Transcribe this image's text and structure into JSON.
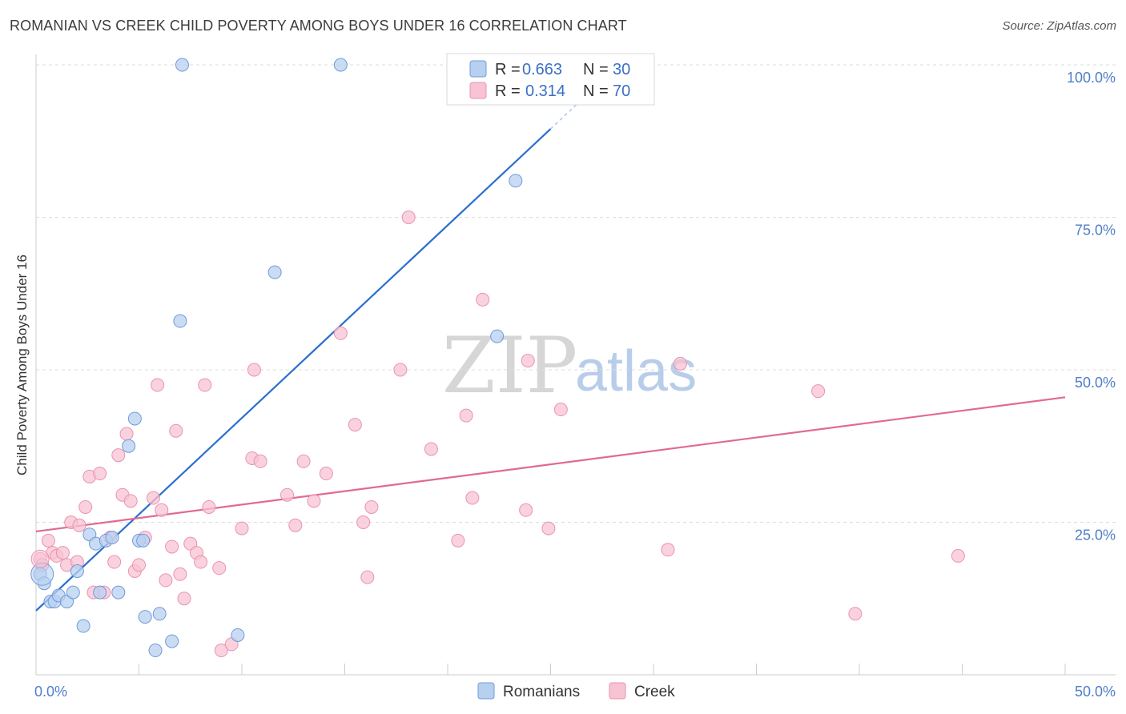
{
  "header": {
    "title": "ROMANIAN VS CREEK CHILD POVERTY AMONG BOYS UNDER 16 CORRELATION CHART",
    "source": "Source: ZipAtlas.com"
  },
  "watermark": {
    "zip": "ZIP",
    "atlas": "atlas"
  },
  "legend": {
    "r_label": "R =",
    "n_label": "N =",
    "romanians": {
      "r": "0.663",
      "n": "30"
    },
    "creek": {
      "r": "0.314",
      "n": "70"
    }
  },
  "bottom_legend": {
    "romanians": "Romanians",
    "creek": "Creek"
  },
  "colors": {
    "romanians_fill": "#b8d0f0",
    "romanians_stroke": "#6f9bd8",
    "romanians_line": "#2a6fcf",
    "creek_fill": "#f8c3d3",
    "creek_stroke": "#e993b0",
    "creek_line": "#e06a94",
    "grid": "#dddddd",
    "tick_text": "#4f7fc9"
  },
  "chart_data": {
    "type": "scatter",
    "title": "ROMANIAN VS CREEK CHILD POVERTY AMONG BOYS UNDER 16 CORRELATION CHART",
    "xlabel": "",
    "ylabel": "Child Poverty Among Boys Under 16",
    "xlim": [
      0,
      50
    ],
    "ylim": [
      0,
      100
    ],
    "x_tick_labels": [
      "0.0%",
      "50.0%"
    ],
    "y_ticks": [
      25,
      50,
      75,
      100
    ],
    "y_tick_labels": [
      "25.0%",
      "50.0%",
      "75.0%",
      "100.0%"
    ],
    "grid": true,
    "series": [
      {
        "name": "Romanians",
        "r": 0.663,
        "n": 30,
        "points": [
          [
            0.2,
            16.5
          ],
          [
            0.4,
            15.0
          ],
          [
            0.7,
            12.0
          ],
          [
            0.9,
            12.0
          ],
          [
            1.1,
            13.0
          ],
          [
            1.5,
            12.0
          ],
          [
            1.8,
            13.5
          ],
          [
            2.0,
            17.0
          ],
          [
            2.3,
            8.0
          ],
          [
            2.6,
            23.0
          ],
          [
            2.9,
            21.5
          ],
          [
            3.1,
            13.5
          ],
          [
            3.4,
            22.0
          ],
          [
            3.7,
            22.5
          ],
          [
            4.0,
            13.5
          ],
          [
            4.5,
            37.5
          ],
          [
            5.0,
            22.0
          ],
          [
            4.8,
            42.0
          ],
          [
            5.2,
            22.0
          ],
          [
            5.3,
            9.5
          ],
          [
            5.8,
            4.0
          ],
          [
            6.0,
            10.0
          ],
          [
            6.6,
            5.5
          ],
          [
            7.0,
            58.0
          ],
          [
            7.1,
            100.0
          ],
          [
            9.8,
            6.5
          ],
          [
            11.6,
            66.0
          ],
          [
            14.8,
            100.0
          ],
          [
            22.4,
            55.5
          ],
          [
            23.3,
            81.0
          ]
        ],
        "trendline": {
          "x": [
            0,
            25
          ],
          "y": [
            10.5,
            89.5
          ]
        }
      },
      {
        "name": "Creek",
        "r": 0.314,
        "n": 70,
        "points": [
          [
            0.2,
            19.0
          ],
          [
            0.3,
            18.0
          ],
          [
            0.6,
            22.0
          ],
          [
            0.8,
            20.0
          ],
          [
            1.0,
            19.5
          ],
          [
            1.3,
            20.0
          ],
          [
            1.5,
            18.0
          ],
          [
            1.7,
            25.0
          ],
          [
            2.0,
            18.5
          ],
          [
            2.1,
            24.5
          ],
          [
            2.4,
            27.5
          ],
          [
            2.6,
            32.5
          ],
          [
            2.8,
            13.5
          ],
          [
            3.1,
            33.0
          ],
          [
            3.3,
            13.5
          ],
          [
            3.6,
            22.5
          ],
          [
            3.8,
            18.5
          ],
          [
            4.0,
            36.0
          ],
          [
            4.2,
            29.5
          ],
          [
            4.4,
            39.5
          ],
          [
            4.6,
            28.5
          ],
          [
            4.8,
            17.0
          ],
          [
            5.0,
            18.0
          ],
          [
            5.3,
            22.5
          ],
          [
            5.7,
            29.0
          ],
          [
            5.9,
            47.5
          ],
          [
            6.1,
            27.0
          ],
          [
            6.3,
            15.5
          ],
          [
            6.6,
            21.0
          ],
          [
            6.8,
            40.0
          ],
          [
            7.0,
            16.5
          ],
          [
            7.2,
            12.5
          ],
          [
            7.5,
            21.5
          ],
          [
            7.8,
            20.0
          ],
          [
            8.0,
            18.5
          ],
          [
            8.2,
            47.5
          ],
          [
            8.4,
            27.5
          ],
          [
            8.9,
            17.5
          ],
          [
            9.0,
            4.0
          ],
          [
            9.5,
            5.0
          ],
          [
            10.0,
            24.0
          ],
          [
            10.5,
            35.5
          ],
          [
            10.6,
            50.0
          ],
          [
            10.9,
            35.0
          ],
          [
            12.2,
            29.5
          ],
          [
            12.6,
            24.5
          ],
          [
            13.0,
            35.0
          ],
          [
            13.5,
            28.5
          ],
          [
            14.1,
            33.0
          ],
          [
            14.8,
            56.0
          ],
          [
            15.5,
            41.0
          ],
          [
            15.9,
            25.0
          ],
          [
            16.1,
            16.0
          ],
          [
            16.3,
            27.5
          ],
          [
            17.7,
            50.0
          ],
          [
            18.1,
            75.0
          ],
          [
            19.2,
            37.0
          ],
          [
            20.9,
            42.5
          ],
          [
            21.2,
            29.0
          ],
          [
            21.7,
            61.5
          ],
          [
            23.8,
            27.0
          ],
          [
            23.9,
            51.5
          ],
          [
            24.9,
            24.0
          ],
          [
            25.5,
            43.5
          ],
          [
            30.7,
            20.5
          ],
          [
            31.3,
            51.0
          ],
          [
            38.0,
            46.5
          ],
          [
            39.8,
            10.0
          ],
          [
            44.8,
            19.5
          ],
          [
            20.5,
            22.0
          ]
        ],
        "trendline": {
          "x": [
            0,
            50
          ],
          "y": [
            23.5,
            45.5
          ]
        }
      }
    ]
  }
}
